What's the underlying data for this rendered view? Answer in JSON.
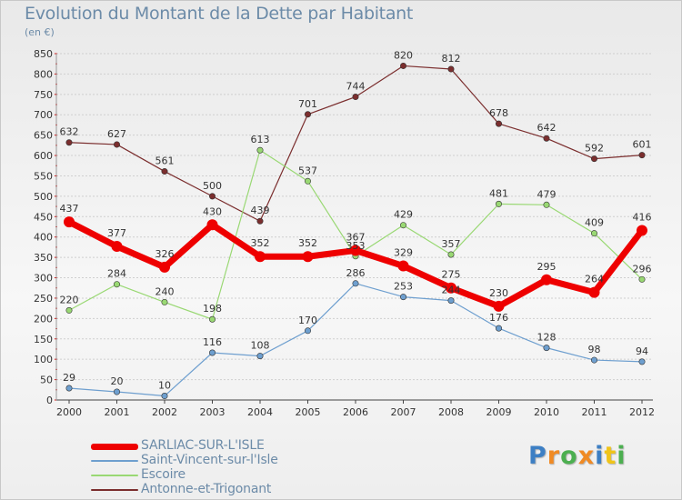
{
  "header": {
    "title": "Evolution du Montant de la Dette par Habitant",
    "subtitle": "(en €)"
  },
  "logo": {
    "text": "Proxiti",
    "letter_colors": [
      "#3d7fc4",
      "#f08a24",
      "#4caf50",
      "#f08a24",
      "#3d7fc4",
      "#f0c419",
      "#4caf50"
    ]
  },
  "chart_data": {
    "type": "line",
    "x": [
      "2000",
      "2001",
      "2002",
      "2003",
      "2004",
      "2005",
      "2006",
      "2007",
      "2008",
      "2009",
      "2010",
      "2011",
      "2012"
    ],
    "ylim": [
      0,
      850
    ],
    "yticks": [
      0,
      50,
      100,
      150,
      200,
      250,
      300,
      350,
      400,
      450,
      500,
      550,
      600,
      650,
      700,
      750,
      800,
      850
    ],
    "grid": "horizontal",
    "legend": "bottom-left",
    "series": [
      {
        "name": "Antonne-et-Trigonant",
        "color": "#7b2e2e",
        "values": [
          632,
          627,
          561,
          500,
          439,
          701,
          744,
          820,
          812,
          678,
          642,
          592,
          601
        ]
      },
      {
        "name": "Escoire",
        "color": "#99d873",
        "values": [
          220,
          284,
          240,
          198,
          613,
          537,
          353,
          429,
          357,
          481,
          479,
          409,
          296
        ]
      },
      {
        "name": "Saint-Vincent-sur-l'Isle",
        "color": "#6e9fcf",
        "values": [
          29,
          20,
          10,
          116,
          108,
          170,
          286,
          253,
          244,
          176,
          128,
          98,
          94
        ]
      },
      {
        "name": "SARLIAC-SUR-L'ISLE",
        "color": "#ee0000",
        "values": [
          437,
          377,
          326,
          430,
          352,
          352,
          367,
          329,
          275,
          230,
          295,
          264,
          416
        ]
      }
    ],
    "legend_order": [
      "SARLIAC-SUR-L'ISLE",
      "Saint-Vincent-sur-l'Isle",
      "Escoire",
      "Antonne-et-Trigonant"
    ]
  }
}
